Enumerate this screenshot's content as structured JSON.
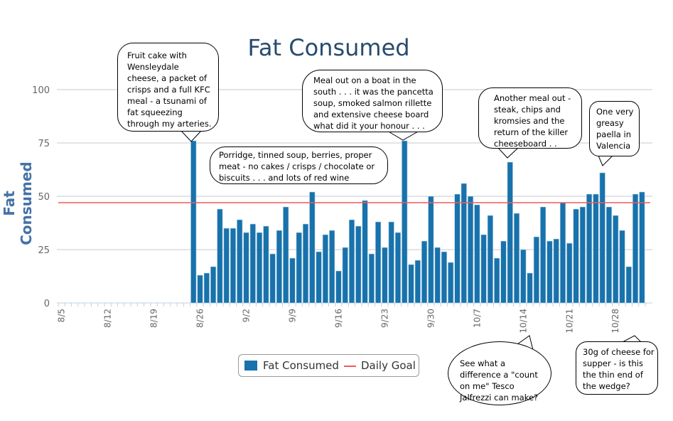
{
  "chart_data": {
    "type": "bar",
    "title": "Fat Consumed",
    "ylabel": "Fat Consumed",
    "xlabel": "",
    "ylim": [
      0,
      100
    ],
    "yticks": [
      0,
      25,
      50,
      75,
      100
    ],
    "grid": true,
    "legend_position": "bottom-center",
    "x_start": "8/5",
    "x_end": "11/1",
    "xtick_labels": [
      "8/5",
      "8/12",
      "8/19",
      "8/26",
      "9/2",
      "9/9",
      "9/16",
      "9/23",
      "9/30",
      "10/7",
      "10/14",
      "10/21",
      "10/28"
    ],
    "categories_first_bar": "8/25",
    "series": [
      {
        "name": "Fat Consumed",
        "type": "bar",
        "color": "#1872ab",
        "values": [
          76,
          13,
          14,
          17,
          44,
          35,
          35,
          39,
          33,
          37,
          33,
          36,
          23,
          34,
          45,
          21,
          33,
          37,
          52,
          24,
          32,
          34,
          15,
          26,
          39,
          36,
          48,
          23,
          38,
          26,
          38,
          33,
          76,
          18,
          20,
          29,
          50,
          26,
          24,
          19,
          51,
          56,
          50,
          46,
          32,
          41,
          21,
          29,
          66,
          42,
          25,
          14,
          31,
          45,
          29,
          30,
          47,
          28,
          44,
          45,
          51,
          51,
          61,
          45,
          41,
          34,
          17,
          51,
          52
        ]
      },
      {
        "name": "Daily Goal",
        "type": "line",
        "color": "#f05a5a",
        "value": 47
      }
    ],
    "annotations": [
      {
        "date": "8/25",
        "text": "Fruit cake with Wensleydale cheese, a packet of crisps and a full KFC meal  - a tsunami of fat squeezing through my arteries."
      },
      {
        "date": "9/26",
        "text": "Meal out on a boat in the south . . .  it was the pancetta soup, smoked salmon rillette and extensive cheese board what did it your honour . . ."
      },
      {
        "date": "",
        "text": "Porridge, tinned soup, berries, proper meat  - no cakes / crisps / chocolate or biscuits  . . . and lots of red wine"
      },
      {
        "date": "10/12",
        "text": "Another meal out - steak, chips and kromsies and the return of the killer cheeseboard . ."
      },
      {
        "date": "10/26",
        "text": "One very greasy paella in Valencia"
      },
      {
        "date": "10/15",
        "text": "See what a difference a \"count on me\" Tesco Jalfrezzi can make?"
      },
      {
        "date": "10/30",
        "text": "30g of cheese for supper - is this the thin end of the wedge?"
      }
    ]
  }
}
